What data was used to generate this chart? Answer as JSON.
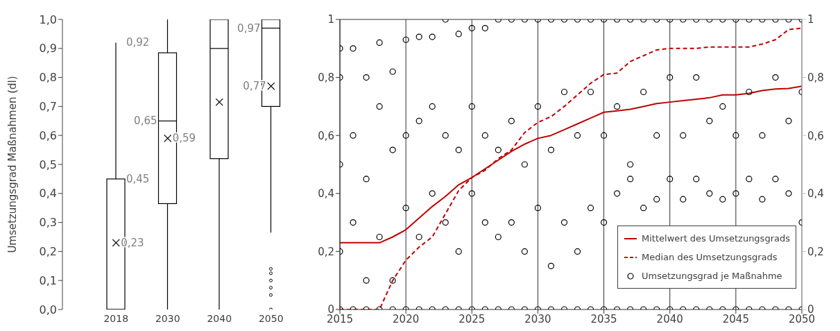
{
  "chart_data": [
    {
      "type": "box",
      "ylabel": "Umsetzungsgrad Maßnahmen (dl)",
      "categories": [
        "2018",
        "2030",
        "2040",
        "2050"
      ],
      "boxes": [
        {
          "low": 0,
          "q1": 0,
          "median": 0,
          "q3": 0.45,
          "high": 0.92
        },
        {
          "low": 0,
          "q1": 0.365,
          "median": 0.65,
          "q3": 0.885,
          "high": 1.0
        },
        {
          "low": 0,
          "q1": 0.52,
          "median": 0.9,
          "q3": 1.0,
          "high": 1.0
        },
        {
          "low": 0.265,
          "q1": 0.7,
          "median": 0.97,
          "q3": 1.0,
          "high": 1.0,
          "outliers": [
            0,
            0.05,
            0.075,
            0.1,
            0.125,
            0.14
          ]
        }
      ],
      "series": [
        {
          "type": "scatter",
          "marker": "cross",
          "color": "#000000",
          "values": [
            0.23,
            0.59,
            0.715,
            0.77
          ],
          "value_labels": [
            "0,23",
            "0,59",
            null,
            "0,77"
          ]
        }
      ],
      "color": "#000000",
      "ylim": [
        0,
        1
      ],
      "yticks": [
        {
          "value": 0,
          "label": "0,0"
        },
        {
          "value": 0.1,
          "label": "0,1"
        },
        {
          "value": 0.2,
          "label": "0,2"
        },
        {
          "value": 0.3,
          "label": "0,3"
        },
        {
          "value": 0.4,
          "label": "0,4"
        },
        {
          "value": 0.5,
          "label": "0,5"
        },
        {
          "value": 0.6,
          "label": "0,6"
        },
        {
          "value": 0.7,
          "label": "0,7"
        },
        {
          "value": 0.8,
          "label": "0,8"
        },
        {
          "value": 0.9,
          "label": "0,9"
        },
        {
          "value": 1,
          "label": "1,0"
        }
      ],
      "annotations": [
        {
          "text": "0,92",
          "x": "2018",
          "y": 0.92
        },
        {
          "text": "0,45",
          "x": "2018",
          "y": 0.45
        },
        {
          "text": "0,65",
          "x": "2030",
          "y": 0.65
        },
        {
          "text": "0,97",
          "x": "2050",
          "y": 0.97
        }
      ]
    },
    {
      "type": "line",
      "grid": true,
      "legend": "bottom right",
      "xlim": [
        2015,
        2050
      ],
      "xticks": [
        2015,
        2020,
        2025,
        2030,
        2035,
        2040,
        2045,
        2050
      ],
      "ylim": [
        0,
        1
      ],
      "yticks": [
        0,
        {
          "value": 0.2,
          "label": "0,2"
        },
        {
          "value": 0.4,
          "label": "0,4"
        },
        {
          "value": 0.6,
          "label": "0,6"
        },
        {
          "value": 0.8,
          "label": "0,8"
        },
        1
      ],
      "y2lim": [
        0,
        1
      ],
      "y2ticks": [
        0,
        {
          "value": 0.2,
          "label": "0,2"
        },
        {
          "value": 0.4,
          "label": "0,4"
        },
        {
          "value": 0.6,
          "label": "0,6"
        },
        {
          "value": 0.8,
          "label": "0,8"
        },
        1
      ],
      "series": [
        {
          "name": "Mittelwert des Umsetzungsgrads",
          "type": "line",
          "color": "#c00000",
          "marker": "none",
          "line_style": "solid",
          "x": [
            2015,
            2016,
            2017,
            2018,
            2019,
            2020,
            2021,
            2022,
            2023,
            2024,
            2025,
            2026,
            2027,
            2028,
            2029,
            2030,
            2031,
            2032,
            2033,
            2034,
            2035,
            2036,
            2037,
            2038,
            2039,
            2040,
            2041,
            2042,
            2043,
            2044,
            2045,
            2046,
            2047,
            2048,
            2049,
            2050
          ],
          "values": [
            0.23,
            0.23,
            0.23,
            0.23,
            0.25,
            0.275,
            0.315,
            0.355,
            0.39,
            0.43,
            0.455,
            0.485,
            0.515,
            0.545,
            0.57,
            0.59,
            0.6,
            0.62,
            0.64,
            0.66,
            0.68,
            0.685,
            0.69,
            0.7,
            0.71,
            0.715,
            0.72,
            0.725,
            0.73,
            0.74,
            0.74,
            0.745,
            0.755,
            0.76,
            0.762,
            0.77
          ]
        },
        {
          "name": "Median des Umsetzungsgrads",
          "type": "line",
          "color": "#c00000",
          "marker": "none",
          "line_style": "dashed",
          "x": [
            2015,
            2016,
            2017,
            2018,
            2019,
            2020,
            2021,
            2022,
            2023,
            2024,
            2025,
            2026,
            2027,
            2028,
            2029,
            2030,
            2031,
            2032,
            2033,
            2034,
            2035,
            2036,
            2037,
            2038,
            2039,
            2040,
            2041,
            2042,
            2043,
            2044,
            2045,
            2046,
            2047,
            2048,
            2049,
            2050
          ],
          "values": [
            0,
            0,
            0,
            0,
            0.1,
            0.17,
            0.215,
            0.25,
            0.33,
            0.41,
            0.455,
            0.48,
            0.52,
            0.55,
            0.61,
            0.645,
            0.665,
            0.7,
            0.74,
            0.78,
            0.81,
            0.815,
            0.855,
            0.875,
            0.895,
            0.9,
            0.9,
            0.9,
            0.905,
            0.905,
            0.905,
            0.905,
            0.915,
            0.93,
            0.965,
            0.97
          ]
        },
        {
          "name": "Umsetzungsgrad je Maßnahme",
          "type": "scatter",
          "color": "#000000",
          "marker": "circle",
          "x": [
            2015,
            2015,
            2015,
            2015,
            2015,
            2016,
            2016,
            2016,
            2016,
            2017,
            2017,
            2017,
            2017,
            2018,
            2018,
            2018,
            2018,
            2019,
            2019,
            2019,
            2019,
            2020,
            2020,
            2020,
            2020,
            2021,
            2021,
            2021,
            2021,
            2022,
            2022,
            2022,
            2022,
            2023,
            2023,
            2023,
            2023,
            2024,
            2024,
            2024,
            2024,
            2025,
            2025,
            2025,
            2025,
            2026,
            2026,
            2026,
            2026,
            2027,
            2027,
            2027,
            2027,
            2028,
            2028,
            2028,
            2028,
            2029,
            2029,
            2029,
            2029,
            2030,
            2030,
            2030,
            2030,
            2031,
            2031,
            2031,
            2031,
            2032,
            2032,
            2032,
            2032,
            2033,
            2033,
            2033,
            2033,
            2034,
            2034,
            2034,
            2034,
            2035,
            2035,
            2035,
            2035,
            2036,
            2036,
            2036,
            2036,
            2037,
            2037,
            2037,
            2037,
            2038,
            2038,
            2038,
            2038,
            2039,
            2039,
            2039,
            2039,
            2040,
            2040,
            2040,
            2040,
            2041,
            2041,
            2041,
            2041,
            2042,
            2042,
            2042,
            2042,
            2043,
            2043,
            2043,
            2043,
            2044,
            2044,
            2044,
            2044,
            2045,
            2045,
            2045,
            2045,
            2046,
            2046,
            2046,
            2046,
            2047,
            2047,
            2047,
            2047,
            2048,
            2048,
            2048,
            2048,
            2049,
            2049,
            2049,
            2049,
            2050,
            2050,
            2050,
            2050
          ],
          "values": [
            0,
            0.2,
            0.5,
            0.8,
            0.9,
            0,
            0.3,
            0.6,
            0.9,
            0,
            0.1,
            0.45,
            0.8,
            0,
            0.25,
            0.7,
            0.92,
            0,
            0.1,
            0.55,
            0.82,
            0,
            0.35,
            0.6,
            0.93,
            0,
            0.25,
            0.65,
            0.94,
            0,
            0.4,
            0.7,
            0.94,
            0,
            0.3,
            0.6,
            1,
            0,
            0.2,
            0.55,
            0.95,
            0,
            0.4,
            0.7,
            0.97,
            0,
            0.3,
            0.6,
            0.97,
            0,
            0.25,
            0.55,
            1,
            0,
            0.3,
            0.65,
            1,
            0,
            0.2,
            0.5,
            1,
            0,
            0.35,
            0.7,
            1,
            0,
            0.15,
            0.55,
            1,
            0,
            0.3,
            0.75,
            1,
            0,
            0.2,
            0.6,
            1,
            0,
            0.35,
            0.75,
            1,
            0,
            0.3,
            0.6,
            1,
            0,
            0.4,
            0.7,
            1,
            0,
            0.45,
            0.5,
            1,
            0,
            0.35,
            0.75,
            1,
            0,
            0.38,
            0.6,
            1,
            0,
            0.45,
            0.8,
            1,
            0,
            0.38,
            0.6,
            1,
            0,
            0.45,
            0.8,
            1,
            0,
            0.4,
            0.65,
            1,
            0,
            0.38,
            0.7,
            1,
            0,
            0.4,
            0.6,
            1,
            0,
            0.45,
            0.75,
            1,
            0,
            0.38,
            0.6,
            1,
            0,
            0.45,
            0.8,
            1,
            0,
            0.4,
            0.65,
            1,
            0,
            0.3,
            0.75,
            1
          ]
        }
      ]
    }
  ]
}
